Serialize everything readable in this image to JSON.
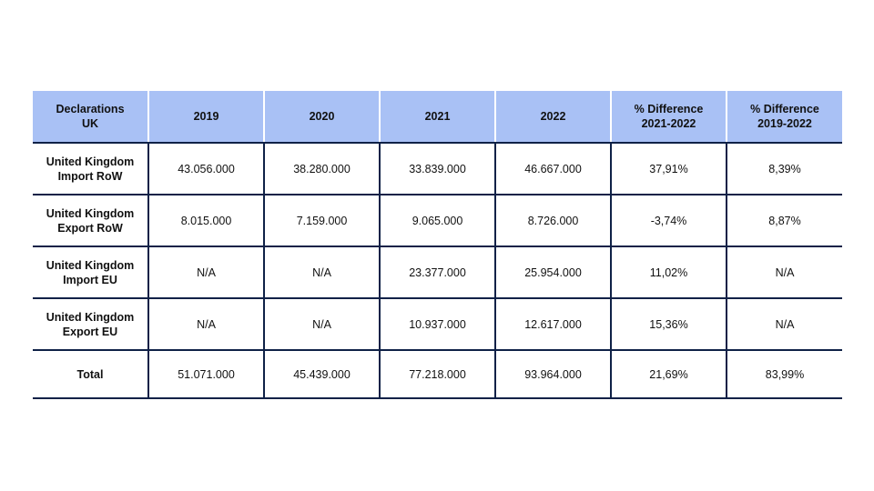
{
  "table": {
    "headers": [
      "Declarations\nUK",
      "2019",
      "2020",
      "2021",
      "2022",
      "% Difference\n2021-2022",
      "% Difference\n2019-2022"
    ],
    "rows": [
      {
        "label": "United Kingdom\nImport RoW",
        "cells": [
          "43.056.000",
          "38.280.000",
          "33.839.000",
          "46.667.000",
          "37,91%",
          "8,39%"
        ]
      },
      {
        "label": "United Kingdom\nExport RoW",
        "cells": [
          "8.015.000",
          "7.159.000",
          "9.065.000",
          "8.726.000",
          "-3,74%",
          "8,87%"
        ]
      },
      {
        "label": "United Kingdom\nImport EU",
        "cells": [
          "N/A",
          "N/A",
          "23.377.000",
          "25.954.000",
          "11,02%",
          "N/A"
        ]
      },
      {
        "label": "United Kingdom\nExport EU",
        "cells": [
          "N/A",
          "N/A",
          "10.937.000",
          "12.617.000",
          "15,36%",
          "N/A"
        ]
      },
      {
        "label": "Total",
        "cells": [
          "51.071.000",
          "45.439.000",
          "77.218.000",
          "93.964.000",
          "21,69%",
          "83,99%"
        ]
      }
    ]
  },
  "colors": {
    "header_bg": "#a9c1f5",
    "border": "#0f2147",
    "page_bg": "#ffffff"
  }
}
